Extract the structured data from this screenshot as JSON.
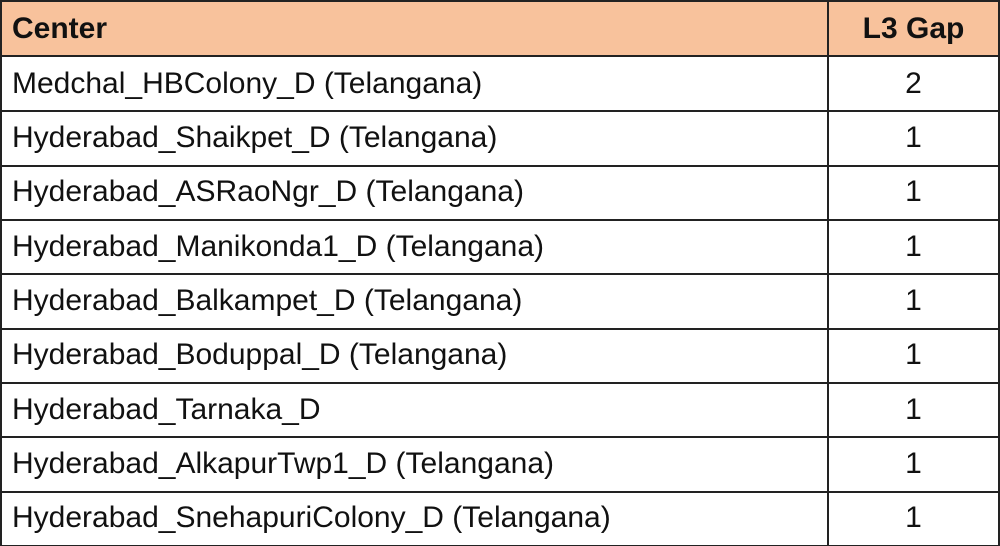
{
  "table": {
    "header": [
      "Center",
      "L3 Gap"
    ],
    "rows": [
      [
        "Medchal_HBColony_D (Telangana)",
        2
      ],
      [
        "Hyderabad_Shaikpet_D (Telangana)",
        1
      ],
      [
        "Hyderabad_ASRaoNgr_D (Telangana)",
        1
      ],
      [
        "Hyderabad_Manikonda1_D (Telangana)",
        1
      ],
      [
        "Hyderabad_Balkampet_D (Telangana)",
        1
      ],
      [
        "Hyderabad_Boduppal_D (Telangana)",
        1
      ],
      [
        "Hyderabad_Tarnaka_D",
        1
      ],
      [
        "Hyderabad_AlkapurTwp1_D (Telangana)",
        1
      ],
      [
        "Hyderabad_SnehapuriColony_D (Telangana)",
        1
      ]
    ]
  }
}
